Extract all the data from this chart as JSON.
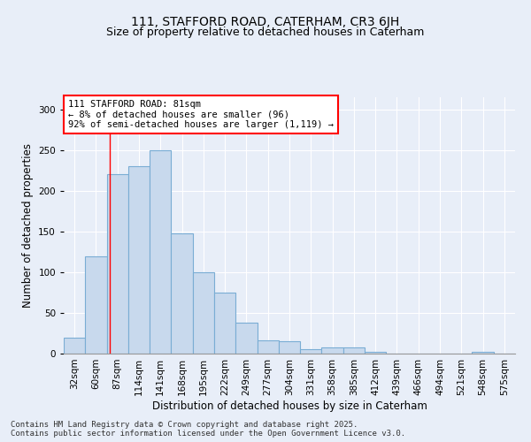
{
  "title_line1": "111, STAFFORD ROAD, CATERHAM, CR3 6JH",
  "title_line2": "Size of property relative to detached houses in Caterham",
  "xlabel": "Distribution of detached houses by size in Caterham",
  "ylabel": "Number of detached properties",
  "categories": [
    "32sqm",
    "60sqm",
    "87sqm",
    "114sqm",
    "141sqm",
    "168sqm",
    "195sqm",
    "222sqm",
    "249sqm",
    "277sqm",
    "304sqm",
    "331sqm",
    "358sqm",
    "385sqm",
    "412sqm",
    "439sqm",
    "466sqm",
    "494sqm",
    "521sqm",
    "548sqm",
    "575sqm"
  ],
  "values": [
    20,
    120,
    220,
    230,
    250,
    148,
    100,
    75,
    38,
    16,
    15,
    5,
    8,
    8,
    2,
    0,
    0,
    0,
    0,
    2,
    0
  ],
  "bar_color": "#c8d9ed",
  "bar_edge_color": "#7aadd4",
  "background_color": "#e8eef8",
  "grid_color": "#ffffff",
  "annotation_box_text": "111 STAFFORD ROAD: 81sqm\n← 8% of detached houses are smaller (96)\n92% of semi-detached houses are larger (1,119) →",
  "footer_text": "Contains HM Land Registry data © Crown copyright and database right 2025.\nContains public sector information licensed under the Open Government Licence v3.0.",
  "ylim": [
    0,
    315
  ],
  "red_line_x": 1.64,
  "title_fontsize": 10,
  "subtitle_fontsize": 9,
  "label_fontsize": 8.5,
  "tick_fontsize": 7.5,
  "footer_fontsize": 6.5,
  "annot_fontsize": 7.5
}
